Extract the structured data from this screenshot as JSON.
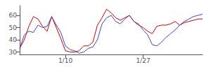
{
  "chart_data": {
    "type": "line",
    "x": [
      0,
      1,
      2,
      3,
      4,
      5,
      6,
      7,
      8,
      9,
      10,
      11,
      12,
      13,
      14,
      15,
      16,
      17,
      18,
      19,
      20,
      21,
      22,
      23,
      24,
      25,
      26,
      27,
      28,
      29,
      30,
      31,
      32,
      33,
      34,
      35,
      36,
      37,
      38,
      39,
      40
    ],
    "series": [
      {
        "color": "#cc0000",
        "values": [
          33,
          40,
          51,
          59,
          57,
          51,
          47,
          59,
          50,
          41,
          31,
          30,
          30,
          31,
          35,
          35,
          38,
          52,
          58,
          65,
          62,
          58,
          56,
          58,
          60,
          55,
          52,
          50,
          47,
          45,
          51,
          52,
          52,
          53,
          55,
          52,
          54,
          55,
          56,
          57,
          57
        ]
      },
      {
        "color": "#4444bb",
        "values": [
          33,
          44,
          47,
          46,
          52,
          50,
          51,
          59,
          52,
          46,
          35,
          32,
          31,
          29,
          30,
          33,
          34,
          40,
          53,
          58,
          60,
          55,
          53,
          57,
          60,
          55,
          53,
          48,
          44,
          36,
          35,
          38,
          42,
          45,
          48,
          52,
          55,
          57,
          59,
          60,
          61
        ]
      }
    ],
    "xlim": [
      0,
      40
    ],
    "xticks": [
      {
        "value": 10,
        "label": "1/10"
      },
      {
        "value": 27,
        "label": "1/27"
      }
    ],
    "ylim": [
      28,
      68
    ],
    "yticks": [
      30,
      40,
      50,
      60
    ],
    "grid": false
  }
}
